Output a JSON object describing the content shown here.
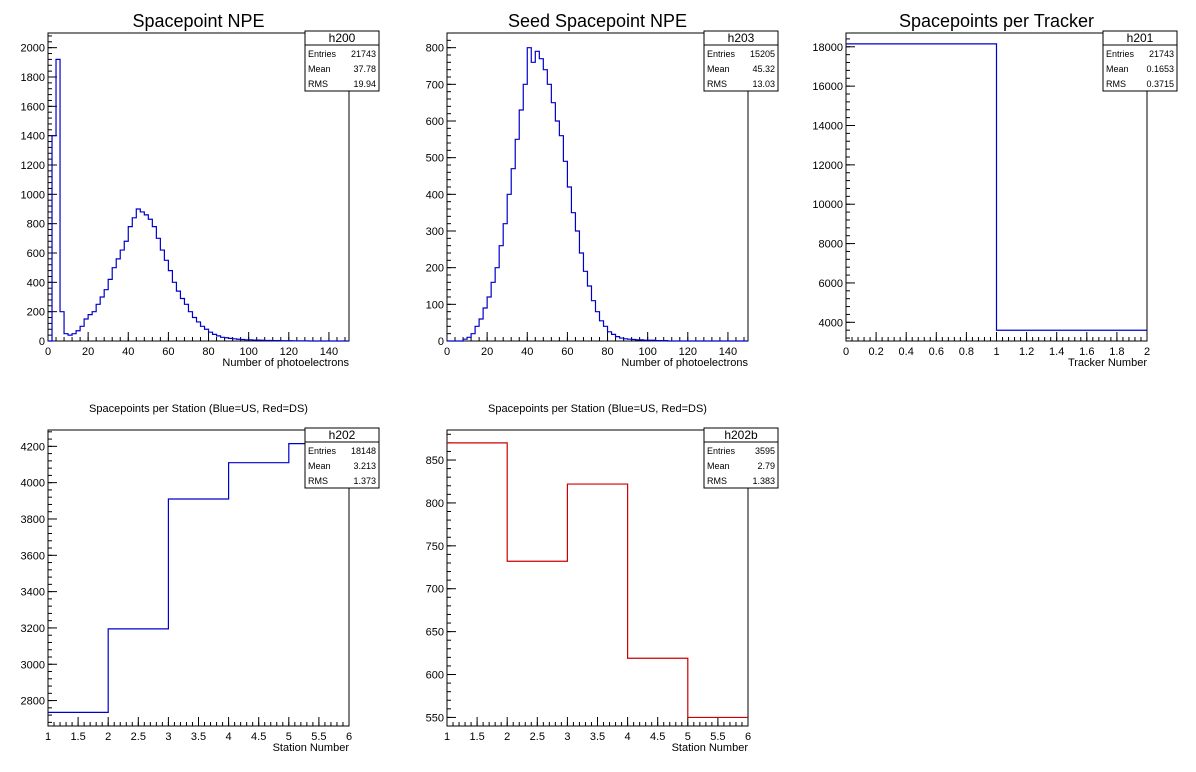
{
  "colors": {
    "blue": "#0000cc",
    "red": "#cc0000",
    "axis": "#000000"
  },
  "chart_data": [
    {
      "type": "histogram",
      "title": "Spacepoint NPE",
      "xlabel": "Number of photoelectrons",
      "ylabel": "",
      "xlim": [
        0,
        150
      ],
      "ylim": [
        0,
        2100
      ],
      "xticks": [
        0,
        20,
        40,
        60,
        80,
        100,
        120,
        140
      ],
      "yticks": [
        0,
        200,
        400,
        600,
        800,
        1000,
        1200,
        1400,
        1600,
        1800,
        2000
      ],
      "color": "blue",
      "stats": {
        "name": "h200",
        "Entries": "21743",
        "Mean": "37.78",
        "RMS": "19.94"
      },
      "bin_width": 2,
      "x_start": 0,
      "values": [
        0,
        1400,
        1920,
        200,
        50,
        40,
        50,
        70,
        100,
        150,
        180,
        200,
        250,
        300,
        350,
        420,
        500,
        560,
        620,
        680,
        780,
        840,
        900,
        880,
        860,
        830,
        780,
        700,
        620,
        550,
        480,
        400,
        340,
        290,
        250,
        200,
        160,
        130,
        100,
        80,
        60,
        45,
        35,
        25,
        22,
        18,
        15,
        12,
        10,
        8,
        8,
        6,
        6,
        5,
        4,
        4,
        3,
        3,
        2,
        2,
        2,
        1,
        1,
        1,
        1,
        0,
        0,
        0,
        0,
        0,
        0,
        0,
        0,
        0,
        0
      ]
    },
    {
      "type": "histogram",
      "title": "Seed Spacepoint NPE",
      "xlabel": "Number of photoelectrons",
      "ylabel": "",
      "xlim": [
        0,
        150
      ],
      "ylim": [
        0,
        840
      ],
      "xticks": [
        0,
        20,
        40,
        60,
        80,
        100,
        120,
        140
      ],
      "yticks": [
        0,
        100,
        200,
        300,
        400,
        500,
        600,
        700,
        800
      ],
      "color": "blue",
      "stats": {
        "name": "h203",
        "Entries": "15205",
        "Mean": "45.32",
        "RMS": "13.03"
      },
      "bin_width": 2,
      "x_start": 0,
      "values": [
        0,
        0,
        0,
        0,
        5,
        10,
        20,
        40,
        60,
        90,
        120,
        160,
        200,
        260,
        320,
        400,
        470,
        550,
        630,
        700,
        800,
        760,
        790,
        770,
        740,
        700,
        650,
        600,
        560,
        490,
        420,
        350,
        300,
        240,
        190,
        150,
        110,
        80,
        55,
        40,
        25,
        18,
        12,
        8,
        6,
        5,
        4,
        3,
        3,
        2,
        2,
        2,
        1,
        1,
        1,
        0,
        0,
        0,
        0,
        0,
        0,
        0,
        0,
        0,
        0,
        0,
        0,
        0,
        0,
        0,
        0,
        0,
        0,
        0,
        0
      ]
    },
    {
      "type": "histogram",
      "title": "Spacepoints per Tracker",
      "xlabel": "Tracker Number",
      "ylabel": "",
      "xlim": [
        0,
        2
      ],
      "ylim": [
        3050,
        18700
      ],
      "xticks": [
        0,
        0.2,
        0.4,
        0.6,
        0.8,
        1,
        1.2,
        1.4,
        1.6,
        1.8,
        2
      ],
      "yticks": [
        4000,
        6000,
        8000,
        10000,
        12000,
        14000,
        16000,
        18000
      ],
      "color": "blue",
      "stats": {
        "name": "h201",
        "Entries": "21743",
        "Mean": "0.1653",
        "RMS": "0.3715"
      },
      "bin_width": 1,
      "x_start": 0,
      "values": [
        18148,
        3595
      ]
    },
    {
      "type": "histogram",
      "title": "Spacepoints per Station (Blue=US, Red=DS)",
      "xlabel": "Station Number",
      "ylabel": "",
      "xlim": [
        1,
        6
      ],
      "ylim": [
        2660,
        4290
      ],
      "xticks": [
        1,
        1.5,
        2,
        2.5,
        3,
        3.5,
        4,
        4.5,
        5,
        5.5,
        6
      ],
      "yticks": [
        2800,
        3000,
        3200,
        3400,
        3600,
        3800,
        4000,
        4200
      ],
      "color": "blue",
      "stats": {
        "name": "h202",
        "Entries": "18148",
        "Mean": "3.213",
        "RMS": "1.373"
      },
      "bin_width": 1,
      "x_start": 1,
      "values": [
        2735,
        3195,
        3910,
        4110,
        4215
      ]
    },
    {
      "type": "histogram",
      "title": "Spacepoints per Station (Blue=US, Red=DS)",
      "xlabel": "Station Number",
      "ylabel": "",
      "xlim": [
        1,
        6
      ],
      "ylim": [
        540,
        885
      ],
      "xticks": [
        1,
        1.5,
        2,
        2.5,
        3,
        3.5,
        4,
        4.5,
        5,
        5.5,
        6
      ],
      "yticks": [
        550,
        600,
        650,
        700,
        750,
        800,
        850
      ],
      "color": "red",
      "stats": {
        "name": "h202b",
        "Entries": "3595",
        "Mean": "2.79",
        "RMS": "1.383"
      },
      "bin_width": 1,
      "x_start": 1,
      "values": [
        870,
        732,
        822,
        619,
        550
      ]
    }
  ]
}
